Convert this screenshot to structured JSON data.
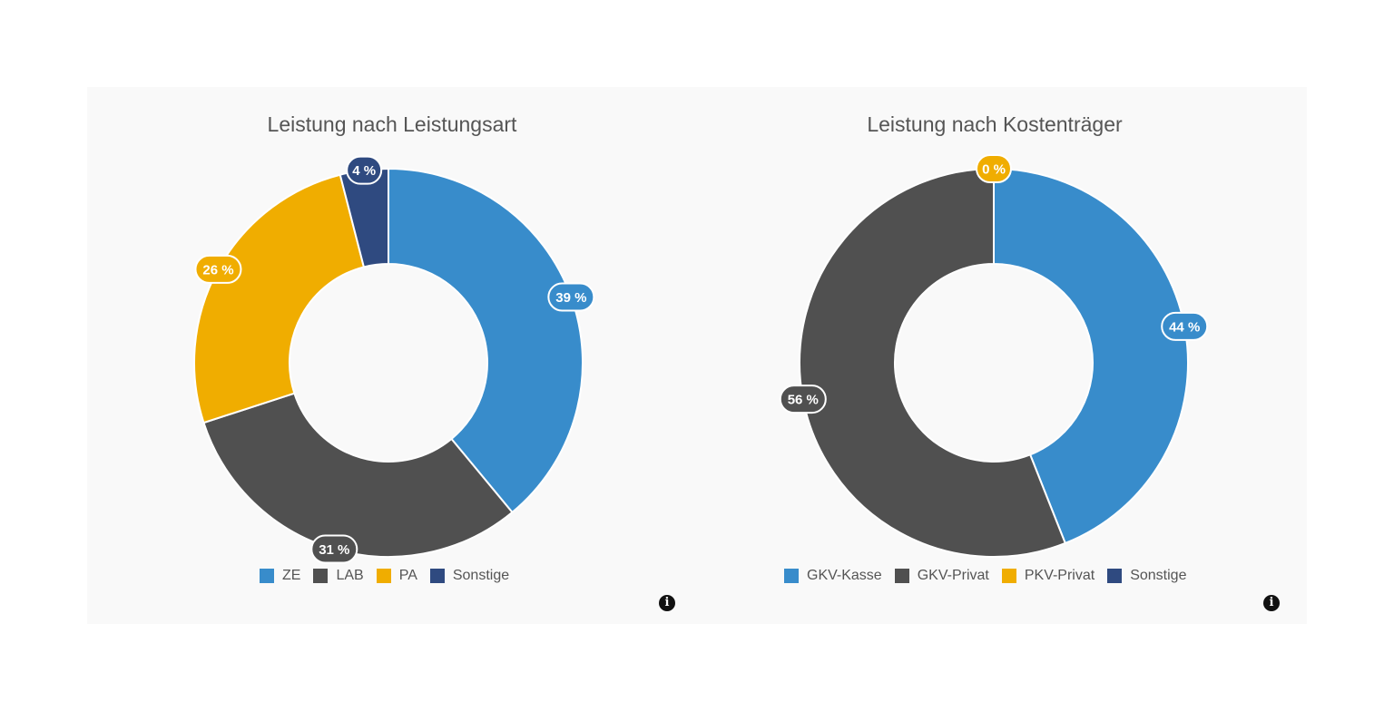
{
  "colors": {
    "blue": "#388ccb",
    "dark": "#505050",
    "yellow": "#f0ad00",
    "navy": "#2f4a80"
  },
  "info_icon": "info-circle-icon",
  "chart_data": [
    {
      "type": "pie",
      "variant": "donut",
      "title": "Leistung nach Leistungsart",
      "legend_position": "bottom",
      "slices": [
        {
          "label": "ZE",
          "value": 39,
          "display": "39 %",
          "color": "#388ccb"
        },
        {
          "label": "LAB",
          "value": 31,
          "display": "31 %",
          "color": "#505050"
        },
        {
          "label": "PA",
          "value": 26,
          "display": "26 %",
          "color": "#f0ad00"
        },
        {
          "label": "Sonstige",
          "value": 4,
          "display": "4 %",
          "color": "#2f4a80"
        }
      ]
    },
    {
      "type": "pie",
      "variant": "donut",
      "title": "Leistung nach Kostenträger",
      "legend_position": "bottom",
      "slices": [
        {
          "label": "GKV-Kasse",
          "value": 44,
          "display": "44 %",
          "color": "#388ccb"
        },
        {
          "label": "GKV-Privat",
          "value": 56,
          "display": "56 %",
          "color": "#505050"
        },
        {
          "label": "PKV-Privat",
          "value": 0,
          "display": "0 %",
          "color": "#f0ad00"
        },
        {
          "label": "Sonstige",
          "value": 0,
          "display": "",
          "color": "#2f4a80"
        }
      ]
    }
  ]
}
